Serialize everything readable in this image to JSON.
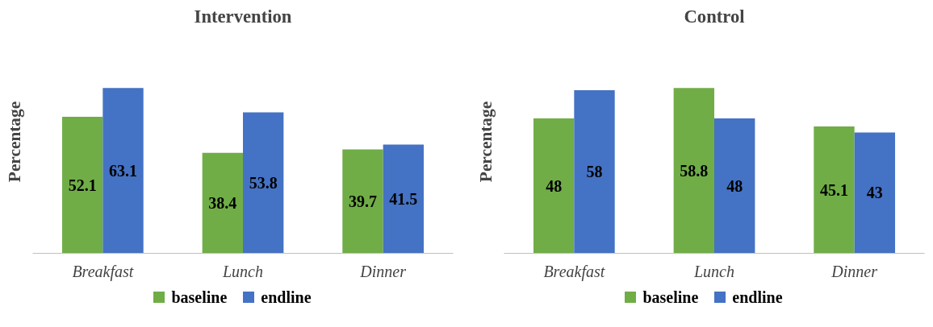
{
  "chart_data": [
    {
      "type": "bar",
      "title": "Intervention",
      "ylabel": "Percentage",
      "categories": [
        "Breakfast",
        "Lunch",
        "Dinner"
      ],
      "series": [
        {
          "name": "baseline",
          "color": "#70ad47",
          "values": [
            52.1,
            38.4,
            39.7
          ]
        },
        {
          "name": "endline",
          "color": "#4472c4",
          "values": [
            63.1,
            53.8,
            41.5
          ]
        }
      ],
      "data_labels": true,
      "legend": "bottom"
    },
    {
      "type": "bar",
      "title": "Control",
      "ylabel": "Percentage",
      "categories": [
        "Breakfast",
        "Lunch",
        "Dinner"
      ],
      "series": [
        {
          "name": "baseline",
          "color": "#70ad47",
          "values": [
            48,
            58.8,
            45.1
          ]
        },
        {
          "name": "endline",
          "color": "#4472c4",
          "values": [
            58,
            48,
            43
          ]
        }
      ],
      "data_labels": true,
      "legend": "bottom"
    }
  ]
}
